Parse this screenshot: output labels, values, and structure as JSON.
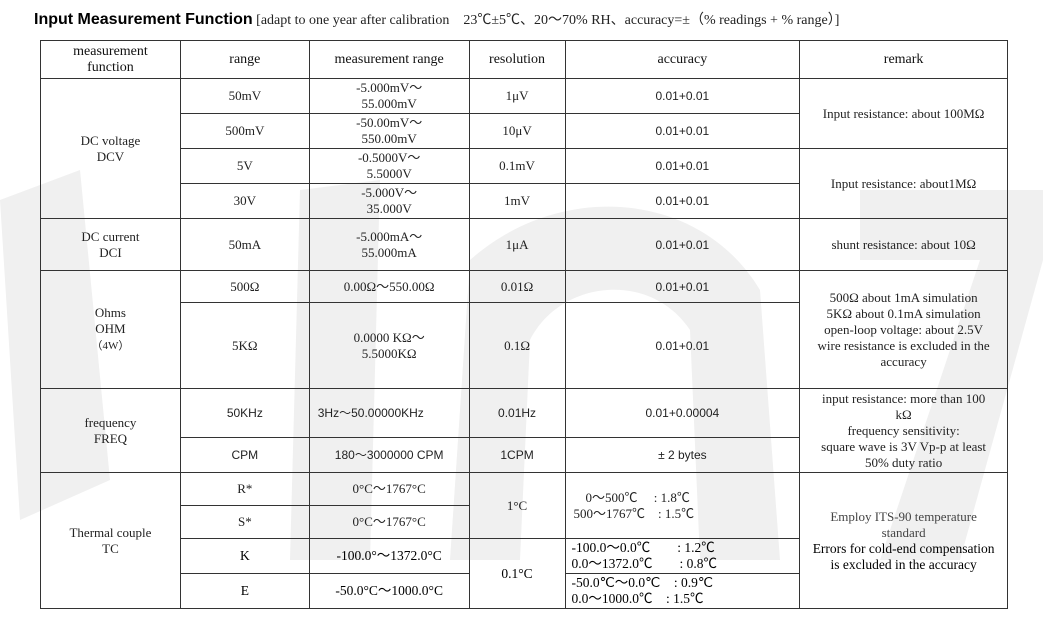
{
  "title": {
    "bold": "Input Measurement Function",
    "note": "[adapt to one year after calibration　23℃±5℃、20～70% RH、accuracy=±（% readings + % range）]"
  },
  "headers": [
    "measurement function",
    "range",
    "measurement range",
    "resolution",
    "accuracy",
    "remark"
  ],
  "dcv": {
    "func": [
      "DC voltage",
      "DCV"
    ],
    "rows": [
      {
        "range": "50mV",
        "mr": [
          "-5.000mV～",
          "55.000mV"
        ],
        "res": "1μV",
        "acc": "0.01+0.01"
      },
      {
        "range": "500mV",
        "mr": [
          "-50.00mV～",
          "550.00mV"
        ],
        "res": "10μV",
        "acc": "0.01+0.01"
      },
      {
        "range": "5V",
        "mr": [
          "-0.5000V～",
          "5.5000V"
        ],
        "res": "0.1mV",
        "acc": "0.01+0.01"
      },
      {
        "range": "30V",
        "mr": [
          "-5.000V～",
          "35.000V"
        ],
        "res": "1mV",
        "acc": "0.01+0.01"
      }
    ],
    "remark1": "Input resistance: about 100MΩ",
    "remark2": "Input resistance: about1MΩ"
  },
  "dci": {
    "func": [
      "DC current",
      "DCI"
    ],
    "range": "50mA",
    "mr": [
      "-5.000mA～",
      "55.000mA"
    ],
    "res": "1μA",
    "acc": "0.01+0.01",
    "remark": "shunt resistance: about 10Ω"
  },
  "ohm": {
    "func": [
      "Ohms",
      "OHM",
      "（4W）"
    ],
    "rows": [
      {
        "range": "500Ω",
        "mr": [
          "0.00Ω～550.00Ω"
        ],
        "res": "0.01Ω",
        "acc": "0.01+0.01"
      },
      {
        "range": "5KΩ",
        "mr": [
          "0.0000 KΩ～",
          "5.5000KΩ"
        ],
        "res": "0.1Ω",
        "acc": "0.01+0.01"
      }
    ],
    "remark": [
      "500Ω about 1mA simulation",
      "5KΩ about 0.1mA simulation",
      "open-loop voltage: about 2.5V",
      "wire resistance is excluded in the",
      "accuracy"
    ]
  },
  "freq": {
    "func": [
      "frequency",
      "FREQ"
    ],
    "rows": [
      {
        "range": "50KHz",
        "mr": "3Hz～50.00000KHz",
        "res": "0.01Hz",
        "acc": "0.01+0.00004"
      },
      {
        "range": "CPM",
        "mr": "180～3000000 CPM",
        "res": "1CPM",
        "acc": "± 2 bytes"
      }
    ],
    "remark": [
      "input resistance: more than 100",
      "kΩ",
      "frequency sensitivity:",
      "square wave is 3V Vp-p at least",
      "50% duty ratio"
    ]
  },
  "tc": {
    "func": [
      "Thermal couple",
      "TC"
    ],
    "rows": [
      {
        "range": "R*",
        "mr": "0°C～1767°C"
      },
      {
        "range": "S*",
        "mr": "0°C～1767°C"
      },
      {
        "range": "K",
        "mr": "-100.0°～1372.0°C"
      },
      {
        "range": "E",
        "mr": "-50.0°C～1000.0°C"
      }
    ],
    "res1": "1°C",
    "res2": "0.1°C",
    "acc_rs": [
      "0～500℃　 : 1.8℃",
      "500～1767℃　: 1.5℃"
    ],
    "acc_k": [
      "-100.0～0.0℃　　: 1.2℃",
      "0.0～1372.0℃　　: 0.8℃"
    ],
    "acc_e": [
      "-50.0℃～0.0℃　: 0.9℃",
      "0.0～1000.0℃　: 1.5℃"
    ],
    "remark": [
      "Employ ITS-90 temperature",
      "standard",
      "Errors for cold-end compensation",
      "is excluded in the accuracy"
    ]
  }
}
